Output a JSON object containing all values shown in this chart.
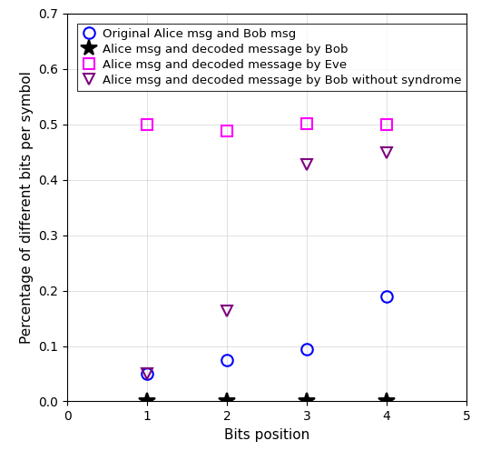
{
  "x": [
    1,
    2,
    3,
    4
  ],
  "xlim": [
    0,
    5
  ],
  "ylim": [
    0,
    0.7
  ],
  "yticks": [
    0.0,
    0.1,
    0.2,
    0.3,
    0.4,
    0.5,
    0.6,
    0.7
  ],
  "xticks": [
    0,
    1,
    2,
    3,
    4,
    5
  ],
  "alice_bob_orig": [
    0.05,
    0.075,
    0.095,
    0.19
  ],
  "alice_bob_decoded": [
    0.0,
    0.0,
    0.0,
    0.0
  ],
  "alice_eve": [
    0.499,
    0.488,
    0.501,
    0.5
  ],
  "alice_bob_nosyndrome": [
    0.05,
    0.163,
    0.428,
    0.448
  ],
  "color_orig": "#0000ff",
  "color_decoded": "#000000",
  "color_eve": "#ff00ff",
  "color_nosyndrome": "#800080",
  "xlabel": "Bits position",
  "ylabel": "Percentage of different bits per symbol",
  "legend_labels": [
    "Original Alice msg and Bob msg",
    "Alice msg and decoded message by Bob",
    "Alice msg and decoded message by Eve",
    "Alice msg and decoded message by Bob without syndrome"
  ],
  "marker_orig": "o",
  "marker_decoded": "*",
  "marker_eve": "s",
  "marker_nosyndrome": "v",
  "markersize_orig": 9,
  "markersize_decoded": 13,
  "markersize_eve": 9,
  "markersize_nosyndrome": 9,
  "label_fontsize": 11,
  "tick_fontsize": 10,
  "legend_fontsize": 9.5
}
